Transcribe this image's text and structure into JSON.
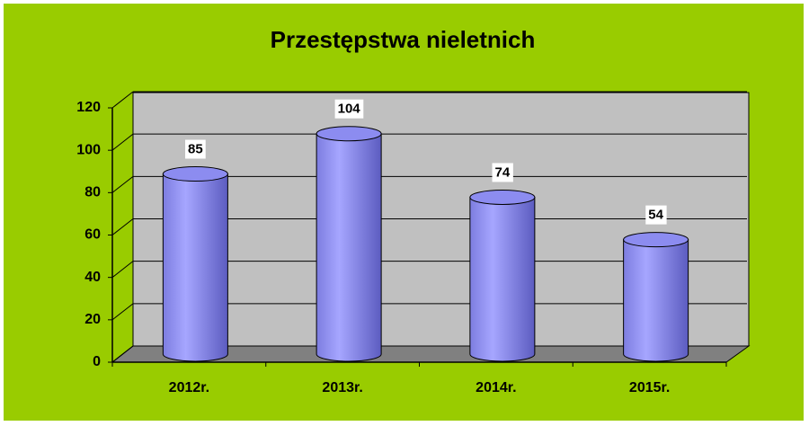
{
  "chart_data": {
    "type": "bar",
    "title": "Przestępstwa nieletnich",
    "categories": [
      "2012r.",
      "2013r.",
      "2014r.",
      "2015r."
    ],
    "values": [
      85,
      104,
      74,
      54
    ],
    "color": "#8c8cf0",
    "ylim": [
      0,
      120
    ],
    "yticks": [
      0,
      20,
      40,
      60,
      80,
      100,
      120
    ],
    "grid": true
  }
}
